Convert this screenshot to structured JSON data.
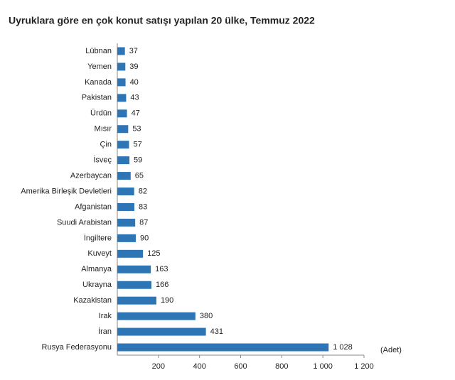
{
  "chart_data": {
    "type": "barh",
    "title": "Uyruklara göre en çok konut satışı yapılan 20 ülke, Temmuz 2022",
    "unit_label": "(Adet)",
    "categories": [
      "Lübnan",
      "Yemen",
      "Kanada",
      "Pakistan",
      "Ürdün",
      "Mısır",
      "Çin",
      "İsveç",
      "Azerbaycan",
      "Amerika Birleşik Devletleri",
      "Afganistan",
      "Suudi Arabistan",
      "İngiltere",
      "Kuveyt",
      "Almanya",
      "Ukrayna",
      "Kazakistan",
      "Irak",
      "İran",
      "Rusya Federasyonu"
    ],
    "values": [
      37,
      39,
      40,
      43,
      47,
      53,
      57,
      59,
      65,
      82,
      83,
      87,
      90,
      125,
      163,
      166,
      190,
      380,
      431,
      1028
    ],
    "value_labels": [
      "37",
      "39",
      "40",
      "43",
      "47",
      "53",
      "57",
      "59",
      "65",
      "82",
      "83",
      "87",
      "90",
      "125",
      "163",
      "166",
      "190",
      "380",
      "431",
      "1 028"
    ],
    "color": "#2e75b6",
    "xlim": [
      0,
      1200
    ],
    "xticks": [
      200,
      400,
      600,
      800,
      {
        "value": 1000,
        "label": "1 000"
      },
      {
        "value": 1200,
        "label": "1 200"
      }
    ]
  }
}
